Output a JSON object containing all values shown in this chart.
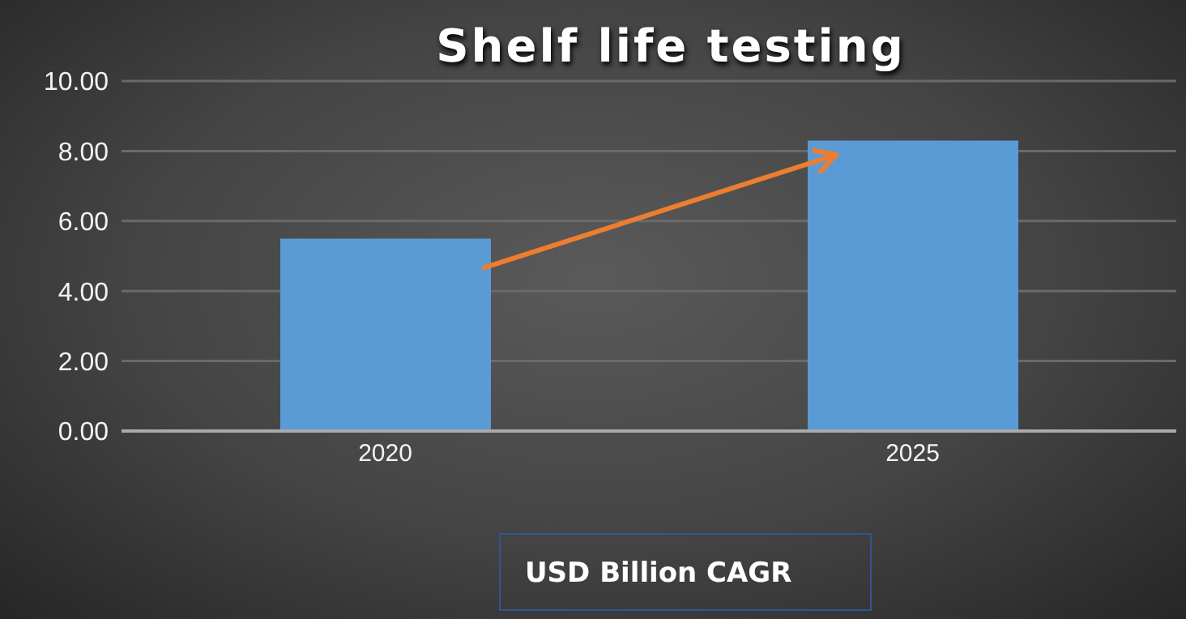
{
  "chart_data": {
    "type": "bar",
    "title": "Shelf life testing",
    "categories": [
      "2020",
      "2025"
    ],
    "values": [
      5.5,
      8.3
    ],
    "color": "#5b9bd5",
    "ylim": [
      0,
      10
    ],
    "yticks": [
      {
        "value": 0,
        "label": "0.00"
      },
      {
        "value": 2,
        "label": "2.00"
      },
      {
        "value": 4,
        "label": "4.00"
      },
      {
        "value": 6,
        "label": "6.00"
      },
      {
        "value": 8,
        "label": "8.00"
      },
      {
        "value": 10,
        "label": "10.00"
      }
    ],
    "grid": "y",
    "annotations": [
      "USD Billion CAGR"
    ]
  }
}
